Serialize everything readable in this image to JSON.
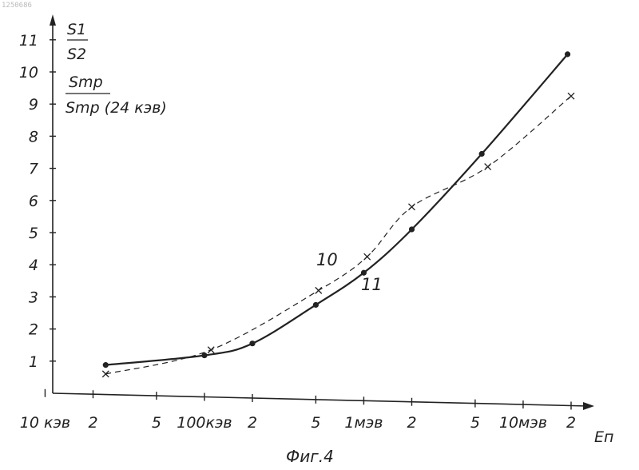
{
  "doc_id": "1250686",
  "chart_data": {
    "type": "line",
    "title": "Фиг.4",
    "xlabel": "Eп",
    "ylabel": {
      "line1_num": "S1",
      "line1_den": "S2",
      "line2_num": "Smp",
      "line2_den": "Smp (24 кэв)"
    },
    "xscale": "log",
    "xlim_kev": [
      10,
      20000
    ],
    "ylim": [
      0,
      11
    ],
    "y_ticks": [
      1,
      2,
      3,
      4,
      5,
      6,
      7,
      8,
      9,
      10,
      11
    ],
    "x_ticks": [
      {
        "kev": 10,
        "label": "10 кэв"
      },
      {
        "kev": 20,
        "label": "2"
      },
      {
        "kev": 50,
        "label": "5"
      },
      {
        "kev": 100,
        "label": "100кэв"
      },
      {
        "kev": 200,
        "label": "2"
      },
      {
        "kev": 500,
        "label": "5"
      },
      {
        "kev": 1000,
        "label": "1мэв"
      },
      {
        "kev": 2000,
        "label": "2"
      },
      {
        "kev": 5000,
        "label": "5"
      },
      {
        "kev": 10000,
        "label": "10мэв"
      },
      {
        "kev": 20000,
        "label": "2"
      }
    ],
    "series": [
      {
        "name": "10",
        "style": "dashed",
        "marker": "x",
        "x_kev": [
          24,
          110,
          520,
          1050,
          2000,
          6000,
          20000
        ],
        "y": [
          0.6,
          1.35,
          3.2,
          4.25,
          5.8,
          7.05,
          9.25
        ]
      },
      {
        "name": "11",
        "style": "solid",
        "marker": "circle",
        "x_kev": [
          24,
          100,
          200,
          500,
          1000,
          2000,
          5500,
          19000
        ],
        "y": [
          0.88,
          1.18,
          1.55,
          2.75,
          3.75,
          5.1,
          7.45,
          10.55
        ]
      }
    ]
  }
}
